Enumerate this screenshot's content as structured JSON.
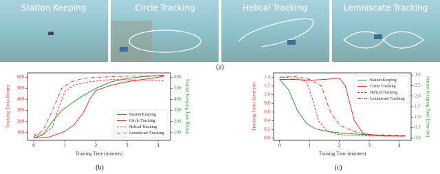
{
  "panels": [
    {
      "title": "Station Keeping"
    },
    {
      "title": "Circle Tracking"
    },
    {
      "title": "Helical Tracking"
    },
    {
      "title": "Lemniscate Tracking"
    }
  ],
  "captions": [
    "(a)",
    "(b)",
    "(c)"
  ],
  "chart_data": [
    {
      "type": "line",
      "xlabel": "Training Time (minutes)",
      "ylabel": "Tracking Tasks Return",
      "y2label": "Station Keeping Task Return",
      "xlim": [
        -0.2,
        4.4
      ],
      "xticks": [
        0,
        1,
        2,
        3,
        4
      ],
      "ylim": [
        30,
        640
      ],
      "yticks": [
        100,
        200,
        300,
        400,
        500,
        600
      ],
      "y2lim": [
        30,
        640
      ],
      "y2ticks": [
        100,
        200,
        300,
        400,
        500,
        600
      ],
      "ycolor": "#e8302a",
      "y2color": "#2a9a2a",
      "legend": "lower right",
      "series": [
        {
          "name": "Station Keeping",
          "color": "#2a9a2a",
          "dash": "solid",
          "axis": "y2",
          "x": [
            0,
            0.3,
            0.6,
            0.9,
            1.2,
            1.5,
            2,
            2.5,
            3,
            3.5,
            4,
            4.2
          ],
          "values": [
            50,
            80,
            200,
            300,
            360,
            420,
            500,
            560,
            590,
            605,
            615,
            620
          ]
        },
        {
          "name": "Circle Tracking",
          "color": "#e8302a",
          "dash": "solid",
          "x": [
            0,
            0.5,
            1,
            1.3,
            1.6,
            1.8,
            2,
            2.5,
            3,
            3.5,
            4,
            4.2
          ],
          "values": [
            50,
            60,
            110,
            170,
            280,
            400,
            480,
            530,
            560,
            580,
            600,
            610
          ]
        },
        {
          "name": "Helical Tracking",
          "color": "#e8302a",
          "dash": "dashed",
          "x": [
            0,
            0.3,
            0.6,
            0.8,
            1,
            1.3,
            1.8,
            2.5,
            3.5,
            4.2
          ],
          "values": [
            80,
            80,
            150,
            320,
            470,
            530,
            560,
            580,
            575,
            570
          ]
        },
        {
          "name": "Lemniscate Tracking",
          "color": "#e8302a",
          "dash": "dashdot",
          "x": [
            0,
            0.3,
            0.6,
            0.9,
            1.2,
            1.6,
            2,
            3,
            4,
            4.2
          ],
          "values": [
            60,
            120,
            300,
            500,
            560,
            590,
            600,
            610,
            615,
            620
          ]
        }
      ]
    },
    {
      "type": "line",
      "xlabel": "Training Time (minutes)",
      "ylabel": "Tracking Tasks Error (m)",
      "y2label": "Station Keeping Task Error (m)",
      "xlim": [
        -0.2,
        4.4
      ],
      "xticks": [
        0,
        1,
        2,
        3,
        4
      ],
      "ylim": [
        -0.05,
        1.5
      ],
      "yticks": [
        {
          "value": 0,
          "label": "0.0"
        },
        0.2,
        0.4,
        0.6,
        0.8,
        {
          "value": 1,
          "label": "1.0"
        },
        1.2,
        1.4
      ],
      "y2lim": [
        -0.1,
        3.1
      ],
      "y2ticks": [
        {
          "value": 0,
          "label": "0.0"
        },
        0.5,
        {
          "value": 1,
          "label": "1.0"
        },
        1.5,
        {
          "value": 2,
          "label": "2.0"
        },
        2.5,
        {
          "value": 3,
          "label": "3.0"
        }
      ],
      "ycolor": "#e8302a",
      "y2color": "#2a9a2a",
      "legend": "upper right",
      "series": [
        {
          "name": "Station Keeping",
          "color": "#2a9a2a",
          "dash": "solid",
          "axis": "y2",
          "x": [
            0,
            0.3,
            0.6,
            0.9,
            1.2,
            1.5,
            2,
            3,
            4,
            4.2
          ],
          "values": [
            2.8,
            2.3,
            1.3,
            0.7,
            0.45,
            0.35,
            0.25,
            0.15,
            0.1,
            0.1
          ]
        },
        {
          "name": "Circle Tracking",
          "color": "#e8302a",
          "dash": "solid",
          "x": [
            0,
            0.5,
            1,
            1.5,
            2,
            2.2,
            2.5,
            2.8,
            3.5,
            4.2
          ],
          "values": [
            1.35,
            1.35,
            1.33,
            1.35,
            1.38,
            1.2,
            0.4,
            0.1,
            0.05,
            0.05
          ]
        },
        {
          "name": "Helical Tracking",
          "color": "#e8302a",
          "dash": "dashed",
          "x": [
            0,
            0.5,
            0.9,
            1.1,
            1.3,
            1.6,
            2,
            3,
            4.2
          ],
          "values": [
            1.4,
            1.38,
            1.3,
            0.9,
            0.4,
            0.15,
            0.08,
            0.05,
            0.05
          ]
        },
        {
          "name": "Lemniscate Tracking",
          "color": "#e8302a",
          "dash": "dashdot",
          "x": [
            0,
            0.5,
            1,
            1.4,
            1.7,
            2,
            2.5,
            3,
            4.2
          ],
          "values": [
            1.4,
            1.42,
            1.35,
            1.2,
            0.6,
            0.3,
            0.15,
            0.08,
            0.06
          ]
        }
      ]
    }
  ]
}
